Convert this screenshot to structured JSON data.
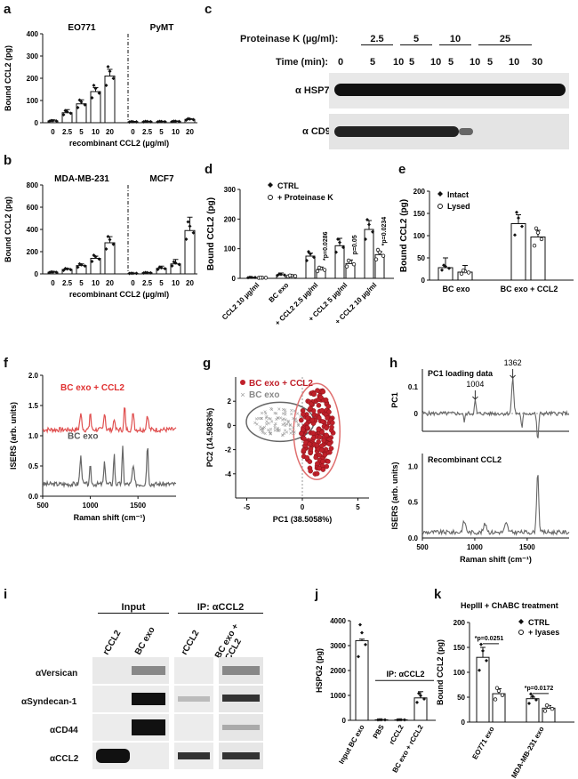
{
  "panel_labels": [
    "a",
    "b",
    "c",
    "d",
    "e",
    "f",
    "g",
    "h",
    "i",
    "j",
    "k"
  ],
  "chart_data": [
    {
      "id": "a",
      "type": "bar",
      "groups": [
        {
          "name": "EO771",
          "categories": [
            "0",
            "2.5",
            "5",
            "10",
            "20"
          ],
          "values": [
            8,
            45,
            85,
            140,
            210
          ],
          "errors": [
            5,
            14,
            18,
            18,
            30
          ]
        },
        {
          "name": "PyMT",
          "categories": [
            "0",
            "2.5",
            "5",
            "10",
            "20"
          ],
          "values": [
            4,
            5,
            5,
            6,
            15
          ],
          "errors": [
            2,
            2,
            2,
            2,
            3
          ]
        }
      ],
      "xlabel": "recombinant CCL2 (µg/ml)",
      "ylabel": "Bound CCL2 (pg)",
      "ylim": [
        0,
        400
      ],
      "yticks": [
        "0",
        "100",
        "200",
        "300",
        "400"
      ]
    },
    {
      "id": "b",
      "type": "bar",
      "groups": [
        {
          "name": "MDA-MB-231",
          "categories": [
            "0",
            "2.5",
            "5",
            "10",
            "20"
          ],
          "values": [
            15,
            40,
            75,
            140,
            280
          ],
          "errors": [
            8,
            10,
            15,
            20,
            55
          ]
        },
        {
          "name": "MCF7",
          "categories": [
            "0",
            "2.5",
            "5",
            "10",
            "20"
          ],
          "values": [
            5,
            10,
            50,
            90,
            390
          ],
          "errors": [
            3,
            4,
            20,
            40,
            120
          ]
        }
      ],
      "xlabel": "recombinant CCL2 (µg/ml)",
      "ylabel": "Bound CCL2 (pg)",
      "ylim": [
        0,
        800
      ],
      "yticks": [
        "0",
        "200",
        "400",
        "600",
        "800"
      ]
    },
    {
      "id": "d",
      "type": "bar",
      "categories": [
        "CCL2 10 µg/ml",
        "BC exo",
        "+ CCL2 2.5 µg/ml",
        "+ CCL2 5 µg/ml",
        "+ CCL2 10 µg/ml"
      ],
      "series": [
        {
          "name": "CTRL",
          "values": [
            3,
            12,
            75,
            110,
            165
          ],
          "errors": [
            1,
            6,
            10,
            25,
            30
          ]
        },
        {
          "name": "+ Proteinase K",
          "values": [
            2,
            8,
            30,
            50,
            80
          ],
          "errors": [
            1,
            4,
            8,
            12,
            10
          ]
        }
      ],
      "pvalues": [
        "*p=0.0286",
        "p=0.05",
        "*p=0.0234"
      ],
      "ylabel": "Bound CCL2 (pg)",
      "ylim": [
        0,
        300
      ],
      "yticks": [
        "0",
        "100",
        "200",
        "300"
      ]
    },
    {
      "id": "e",
      "type": "bar",
      "categories": [
        "BC exo",
        "BC exo + CCL2"
      ],
      "series": [
        {
          "name": "Intact",
          "values": [
            28,
            127
          ],
          "errors": [
            22,
            20
          ]
        },
        {
          "name": "Lysed",
          "values": [
            18,
            97
          ],
          "errors": [
            15,
            15
          ]
        }
      ],
      "ylabel": "Bound CCL2 (pg)",
      "ylim": [
        0,
        200
      ],
      "yticks": [
        "0",
        "50",
        "100",
        "150",
        "200"
      ]
    },
    {
      "id": "f",
      "type": "line",
      "series": [
        {
          "name": "BC exo + CCL2"
        },
        {
          "name": "BC exo"
        }
      ],
      "xlabel": "Raman shift (cm⁻¹)",
      "ylabel": "ISERS (arb. units)",
      "xlim": [
        500,
        1900
      ],
      "xticks": [
        "500",
        "1000",
        "1500"
      ],
      "ylim": [
        0,
        2.0
      ],
      "yticks": [
        "0.0",
        "0.5",
        "1.0",
        "1.5",
        "2.0"
      ]
    },
    {
      "id": "g",
      "type": "scatter",
      "series": [
        {
          "name": "BC exo + CCL2"
        },
        {
          "name": "BC exo"
        }
      ],
      "xlabel": "PC1 (38.5058%)",
      "ylabel": "PC2 (14.5083%)",
      "xlim": [
        -6,
        6
      ],
      "xticks": [
        "-5",
        "0",
        "5"
      ],
      "ylim": [
        -6,
        4
      ],
      "yticks": [
        "-4",
        "-2",
        "0",
        "2"
      ]
    },
    {
      "id": "h",
      "type": "line",
      "subplots": [
        {
          "title": "PC1 loading data",
          "ylabel": "PC1",
          "yticks": [
            "0",
            "0.1"
          ],
          "annotations": [
            "1004",
            "1362"
          ]
        },
        {
          "title": "Recombinant CCL2",
          "ylabel": "ISERS (arb. units)",
          "yticks": [
            "0.0",
            "0.5",
            "1.0"
          ]
        }
      ],
      "xlabel": "Raman shift (cm⁻¹)",
      "xticks": [
        "500",
        "1000",
        "1500"
      ],
      "xlim": [
        500,
        1900
      ]
    },
    {
      "id": "j",
      "type": "bar",
      "categories": [
        "Input BC exo",
        "PBS",
        "rCCL2",
        "BC exo + rCCL2"
      ],
      "values": [
        3200,
        20,
        20,
        900
      ],
      "errors": [
        60,
        10,
        10,
        250
      ],
      "ylabel": "HSPG2 (pg)",
      "ylim": [
        0,
        4000
      ],
      "yticks": [
        "0",
        "1000",
        "2000",
        "3000",
        "4000"
      ],
      "bracket_label": "IP: αCCL2"
    },
    {
      "id": "k",
      "type": "bar",
      "title": "HepIII + ChABC treatment",
      "categories": [
        "EO771 exo",
        "MDA-MB-231 exo"
      ],
      "series": [
        {
          "name": "CTRL",
          "values": [
            130,
            47
          ],
          "errors": [
            20,
            3
          ]
        },
        {
          "name": "+ lyases",
          "values": [
            57,
            28
          ],
          "errors": [
            10,
            5
          ]
        }
      ],
      "pvalues": [
        "*p=0.0251",
        "*p=0.0172"
      ],
      "ylabel": "Bound CCL2 (pg)",
      "ylim": [
        0,
        200
      ],
      "yticks": [
        "0",
        "50",
        "100",
        "150",
        "200"
      ]
    }
  ],
  "blot_c": {
    "header_label": "Proteinase K (µg/ml):",
    "conc_labels": [
      "2.5",
      "5",
      "10",
      "25"
    ],
    "time_label": "Time (min):",
    "time_values": [
      "0",
      "5",
      "10",
      "5",
      "10",
      "5",
      "10",
      "5",
      "10",
      "30"
    ],
    "rows": [
      "α HSP70",
      "α CD9"
    ]
  },
  "blot_i": {
    "headers": [
      "Input",
      "IP: αCCL2"
    ],
    "lanes": [
      "rCCL2",
      "BC exo",
      "rCCL2",
      "BC exo + rCCL2"
    ],
    "rows": [
      "αVersican",
      "αSyndecan-1",
      "αCD44",
      "αCCL2"
    ]
  }
}
